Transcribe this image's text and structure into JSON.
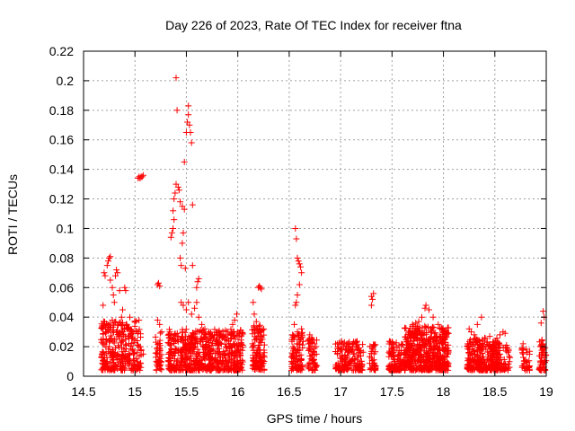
{
  "chart_data": {
    "type": "scatter",
    "title": "Day 226 of 2023, Rate Of TEC Index for receiver ftna",
    "xlabel": "GPS time / hours",
    "ylabel": "ROTI / TECUs",
    "xlim": [
      14.5,
      19
    ],
    "ylim": [
      0,
      0.22
    ],
    "xticks": [
      14.5,
      15,
      15.5,
      16,
      16.5,
      17,
      17.5,
      18,
      18.5,
      19
    ],
    "xtick_labels": [
      "14.5",
      "15",
      "15.5",
      "16",
      "16.5",
      "17",
      "17.5",
      "18",
      "18.5",
      "19"
    ],
    "yticks": [
      0,
      0.02,
      0.04,
      0.06,
      0.08,
      0.1,
      0.12,
      0.14,
      0.16,
      0.18,
      0.2,
      0.22
    ],
    "ytick_labels": [
      "0",
      "0.02",
      "0.04",
      "0.06",
      "0.08",
      "0.1",
      "0.12",
      "0.14",
      "0.16",
      "0.18",
      "0.2",
      "0.22"
    ],
    "grid": true,
    "legend": "none",
    "marker": "plus",
    "color": "#ff0000",
    "series": [
      {
        "values": [
          [
            14.68,
            0.034
          ],
          [
            14.69,
            0.022
          ],
          [
            14.69,
            0.048
          ],
          [
            14.7,
            0.07
          ],
          [
            14.71,
            0.068
          ],
          [
            14.72,
            0.03
          ],
          [
            14.73,
            0.075
          ],
          [
            14.74,
            0.078
          ],
          [
            14.75,
            0.08
          ],
          [
            14.76,
            0.081
          ],
          [
            14.76,
            0.065
          ],
          [
            14.78,
            0.06
          ],
          [
            14.79,
            0.055
          ],
          [
            14.8,
            0.05
          ],
          [
            14.81,
            0.068
          ],
          [
            14.82,
            0.072
          ],
          [
            14.83,
            0.07
          ],
          [
            14.78,
            0.038
          ],
          [
            14.82,
            0.03
          ],
          [
            14.85,
            0.058
          ],
          [
            14.87,
            0.04
          ],
          [
            14.88,
            0.045
          ],
          [
            14.9,
            0.06
          ],
          [
            14.91,
            0.058
          ],
          [
            14.92,
            0.035
          ],
          [
            14.94,
            0.033
          ],
          [
            14.95,
            0.04
          ],
          [
            14.96,
            0.028
          ],
          [
            14.98,
            0.03
          ],
          [
            15.0,
            0.025
          ],
          [
            15.02,
            0.024
          ],
          [
            15.03,
            0.134
          ],
          [
            15.04,
            0.135
          ],
          [
            15.05,
            0.134
          ],
          [
            15.06,
            0.135
          ],
          [
            15.07,
            0.135
          ],
          [
            15.08,
            0.136
          ],
          [
            15.04,
            0.02
          ],
          [
            15.06,
            0.018
          ],
          [
            15.08,
            0.015
          ],
          [
            15.22,
            0.062
          ],
          [
            15.23,
            0.063
          ],
          [
            15.24,
            0.061
          ],
          [
            15.22,
            0.038
          ],
          [
            15.24,
            0.035
          ],
          [
            15.26,
            0.03
          ],
          [
            15.22,
            0.015
          ],
          [
            15.25,
            0.012
          ],
          [
            15.33,
            0.022
          ],
          [
            15.34,
            0.03
          ],
          [
            15.35,
            0.094
          ],
          [
            15.36,
            0.097
          ],
          [
            15.37,
            0.1
          ],
          [
            15.37,
            0.112
          ],
          [
            15.38,
            0.12
          ],
          [
            15.38,
            0.106
          ],
          [
            15.39,
            0.124
          ],
          [
            15.4,
            0.13
          ],
          [
            15.4,
            0.202
          ],
          [
            15.41,
            0.18
          ],
          [
            15.42,
            0.128
          ],
          [
            15.43,
            0.126
          ],
          [
            15.44,
            0.118
          ],
          [
            15.44,
            0.08
          ],
          [
            15.45,
            0.075
          ],
          [
            15.46,
            0.09
          ],
          [
            15.46,
            0.115
          ],
          [
            15.47,
            0.097
          ],
          [
            15.48,
            0.113
          ],
          [
            15.48,
            0.145
          ],
          [
            15.49,
            0.073
          ],
          [
            15.5,
            0.165
          ],
          [
            15.51,
            0.172
          ],
          [
            15.52,
            0.183
          ],
          [
            15.52,
            0.177
          ],
          [
            15.53,
            0.17
          ],
          [
            15.54,
            0.165
          ],
          [
            15.55,
            0.158
          ],
          [
            15.56,
            0.116
          ],
          [
            15.56,
            0.075
          ],
          [
            15.45,
            0.05
          ],
          [
            15.47,
            0.048
          ],
          [
            15.5,
            0.045
          ],
          [
            15.52,
            0.05
          ],
          [
            15.55,
            0.042
          ],
          [
            15.58,
            0.046
          ],
          [
            15.6,
            0.06
          ],
          [
            15.61,
            0.064
          ],
          [
            15.62,
            0.066
          ],
          [
            15.6,
            0.05
          ],
          [
            15.62,
            0.04
          ],
          [
            15.65,
            0.035
          ],
          [
            15.68,
            0.032
          ],
          [
            15.72,
            0.03
          ],
          [
            15.75,
            0.028
          ],
          [
            15.8,
            0.025
          ],
          [
            15.85,
            0.026
          ],
          [
            15.9,
            0.028
          ],
          [
            15.95,
            0.035
          ],
          [
            15.97,
            0.038
          ],
          [
            15.99,
            0.042
          ],
          [
            16.15,
            0.05
          ],
          [
            16.16,
            0.042
          ],
          [
            16.18,
            0.037
          ],
          [
            16.2,
            0.06
          ],
          [
            16.21,
            0.061
          ],
          [
            16.22,
            0.06
          ],
          [
            16.23,
            0.059
          ],
          [
            16.24,
            0.025
          ],
          [
            16.22,
            0.03
          ],
          [
            16.56,
            0.1
          ],
          [
            16.57,
            0.093
          ],
          [
            16.58,
            0.08
          ],
          [
            16.59,
            0.078
          ],
          [
            16.6,
            0.076
          ],
          [
            16.61,
            0.074
          ],
          [
            16.62,
            0.07
          ],
          [
            16.6,
            0.062
          ],
          [
            16.58,
            0.055
          ],
          [
            16.57,
            0.05
          ],
          [
            16.56,
            0.048
          ],
          [
            16.55,
            0.035
          ],
          [
            16.58,
            0.03
          ],
          [
            16.62,
            0.032
          ],
          [
            16.7,
            0.028
          ],
          [
            16.72,
            0.026
          ],
          [
            17.3,
            0.054
          ],
          [
            17.31,
            0.052
          ],
          [
            17.3,
            0.048
          ],
          [
            17.32,
            0.056
          ],
          [
            17.7,
            0.035
          ],
          [
            17.73,
            0.036
          ],
          [
            17.76,
            0.037
          ],
          [
            17.79,
            0.04
          ],
          [
            17.82,
            0.046
          ],
          [
            17.83,
            0.048
          ],
          [
            17.86,
            0.045
          ],
          [
            17.9,
            0.04
          ],
          [
            17.95,
            0.035
          ],
          [
            18.0,
            0.03
          ],
          [
            18.25,
            0.032
          ],
          [
            18.27,
            0.03
          ],
          [
            18.3,
            0.028
          ],
          [
            18.33,
            0.035
          ],
          [
            18.37,
            0.04
          ],
          [
            18.45,
            0.027
          ],
          [
            18.55,
            0.028
          ],
          [
            18.58,
            0.03
          ],
          [
            18.6,
            0.029
          ],
          [
            18.95,
            0.036
          ],
          [
            18.97,
            0.044
          ],
          [
            18.98,
            0.04
          ]
        ]
      }
    ],
    "dense_clusters": [
      {
        "x_range": [
          14.67,
          15.06
        ],
        "y_range": [
          0.004,
          0.038
        ],
        "count": 300
      },
      {
        "x_range": [
          15.2,
          15.26
        ],
        "y_range": [
          0.004,
          0.03
        ],
        "count": 40
      },
      {
        "x_range": [
          15.32,
          16.05
        ],
        "y_range": [
          0.004,
          0.032
        ],
        "count": 620
      },
      {
        "x_range": [
          16.14,
          16.26
        ],
        "y_range": [
          0.004,
          0.035
        ],
        "count": 110
      },
      {
        "x_range": [
          16.52,
          16.64
        ],
        "y_range": [
          0.004,
          0.03
        ],
        "count": 90
      },
      {
        "x_range": [
          16.68,
          16.77
        ],
        "y_range": [
          0.004,
          0.026
        ],
        "count": 60
      },
      {
        "x_range": [
          16.95,
          17.22
        ],
        "y_range": [
          0.004,
          0.024
        ],
        "count": 170
      },
      {
        "x_range": [
          17.28,
          17.34
        ],
        "y_range": [
          0.004,
          0.022
        ],
        "count": 35
      },
      {
        "x_range": [
          17.47,
          17.62
        ],
        "y_range": [
          0.004,
          0.024
        ],
        "count": 120
      },
      {
        "x_range": [
          17.62,
          18.05
        ],
        "y_range": [
          0.004,
          0.034
        ],
        "count": 520
      },
      {
        "x_range": [
          18.23,
          18.55
        ],
        "y_range": [
          0.004,
          0.026
        ],
        "count": 300
      },
      {
        "x_range": [
          18.55,
          18.65
        ],
        "y_range": [
          0.004,
          0.022
        ],
        "count": 40
      },
      {
        "x_range": [
          18.76,
          18.84
        ],
        "y_range": [
          0.004,
          0.022
        ],
        "count": 35
      },
      {
        "x_range": [
          18.93,
          19.0
        ],
        "y_range": [
          0.004,
          0.026
        ],
        "count": 55
      }
    ]
  }
}
